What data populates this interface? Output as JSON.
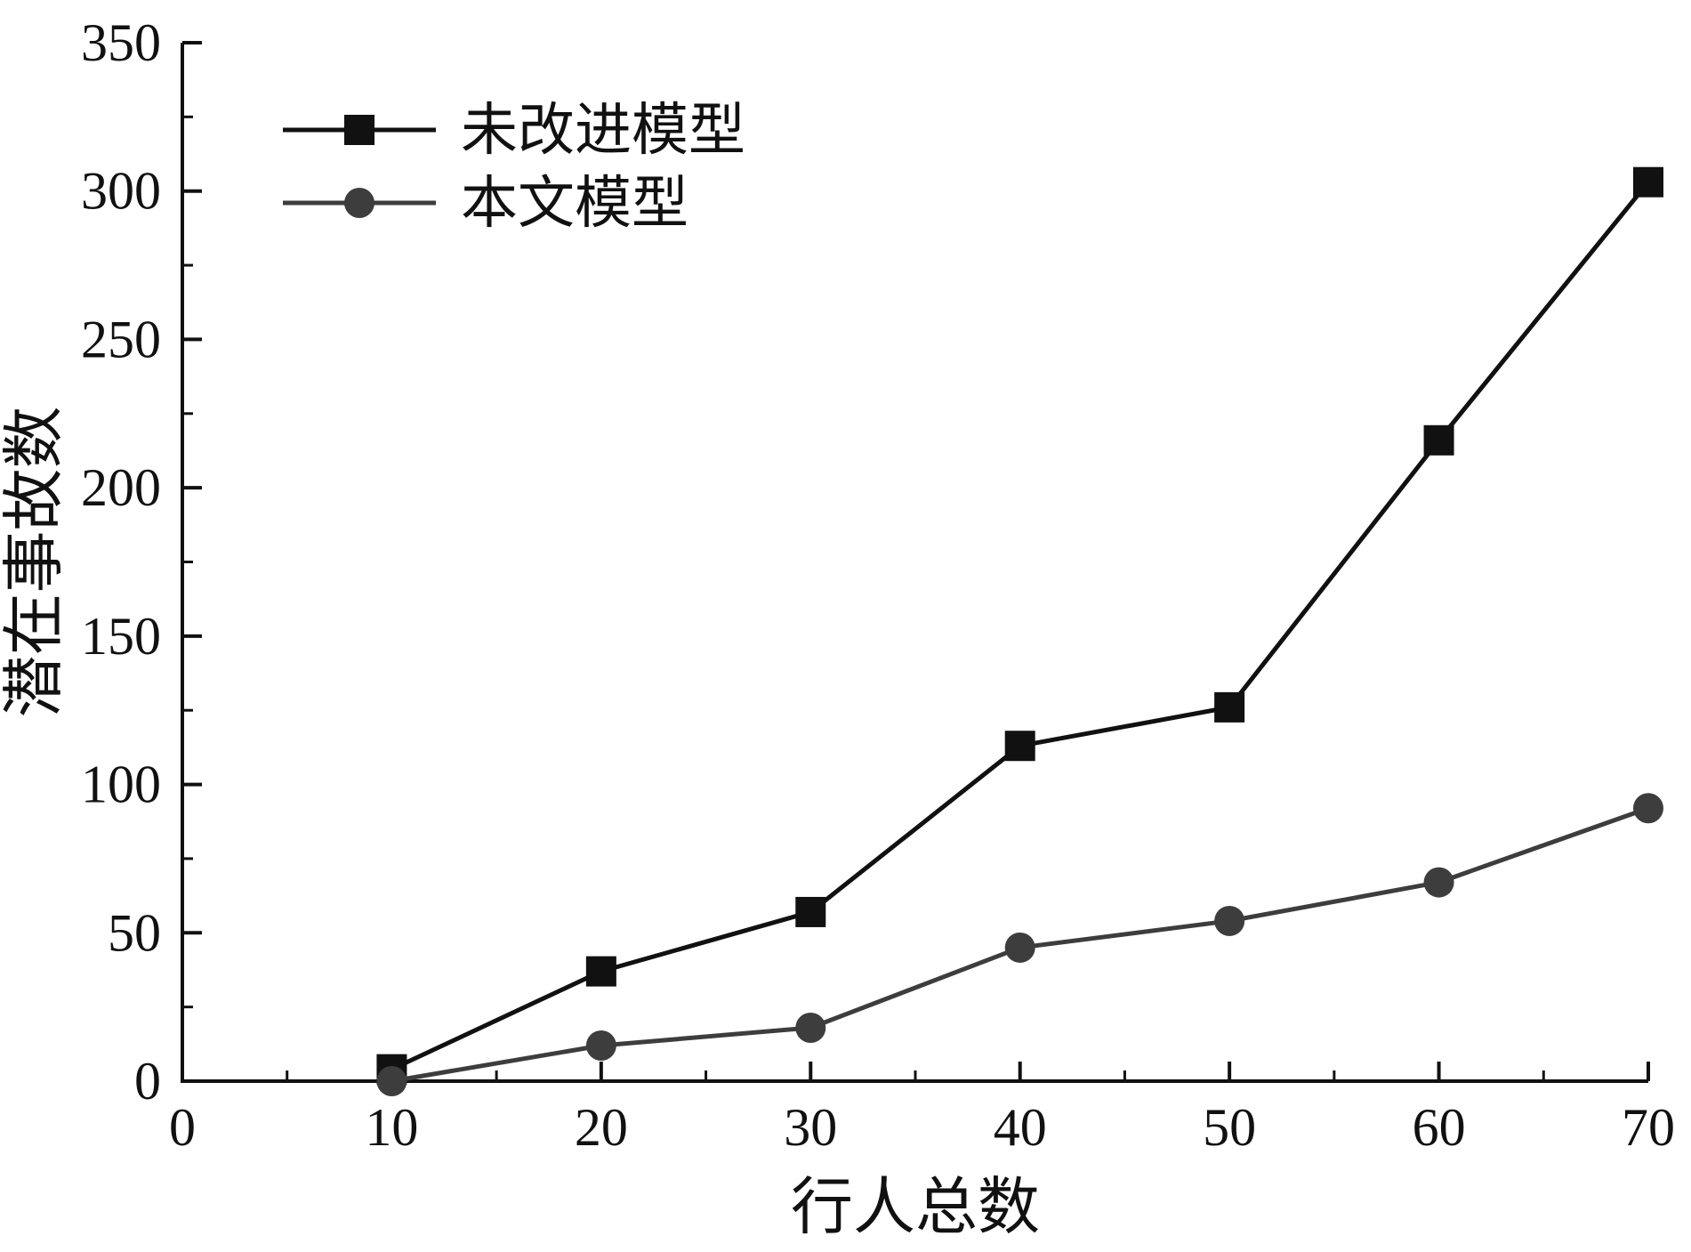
{
  "page": {
    "background": "#ffffff",
    "axis_color": "#111111"
  },
  "chart_data": {
    "type": "line",
    "x": [
      10,
      20,
      30,
      40,
      50,
      60,
      70
    ],
    "series": [
      {
        "name": "未改进模型",
        "values": [
          4,
          37,
          57,
          113,
          126,
          216,
          303
        ],
        "color": "#111111",
        "marker": "square"
      },
      {
        "name": "本文模型",
        "values": [
          0,
          12,
          18,
          45,
          54,
          67,
          92
        ],
        "color": "#3d3d3d",
        "marker": "circle"
      }
    ],
    "title": "",
    "xlabel": "行人总数",
    "ylabel": "潜在事故数",
    "xlim": [
      0,
      70
    ],
    "ylim": [
      0,
      350
    ],
    "x_ticks": [
      0,
      10,
      20,
      30,
      40,
      50,
      60,
      70
    ],
    "y_ticks": [
      0,
      50,
      100,
      150,
      200,
      250,
      300,
      350
    ],
    "x_minor_step": 5,
    "y_minor_step": 25,
    "grid": false,
    "legend_position": "top-left"
  }
}
